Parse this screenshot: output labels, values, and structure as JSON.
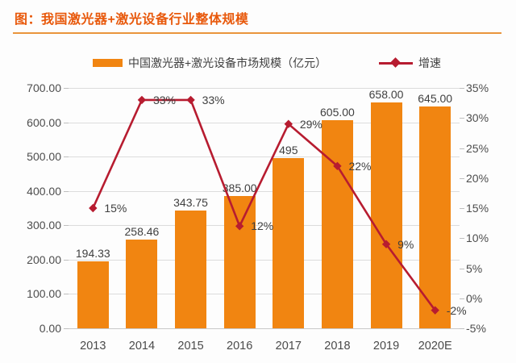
{
  "header": {
    "title": "图：我国激光器+激光设备行业整体规模"
  },
  "legend": {
    "items": [
      {
        "label": "中国激光器+激光设备市场规模（亿元）",
        "type": "bar"
      },
      {
        "label": "增速",
        "type": "line"
      }
    ]
  },
  "colors": {
    "title": "#E8590C",
    "underline": "#E9953C",
    "bar": "#F18511",
    "line": "#B71C30",
    "grid": "#DCDCDC",
    "axis_text": "#4D4D4D",
    "label_text": "#3F3F3F"
  },
  "chart_data": {
    "type": "bar+line combo",
    "title": "图：我国激光器+激光设备行业整体规模",
    "categories": [
      "2013",
      "2014",
      "2015",
      "2016",
      "2017",
      "2018",
      "2019",
      "2020E"
    ],
    "series": [
      {
        "name": "中国激光器+激光设备市场规模（亿元）",
        "type": "bar",
        "axis": "left",
        "values": [
          194.33,
          258.46,
          343.75,
          385.0,
          495,
          605.0,
          658.0,
          645.0
        ],
        "labels": [
          "194.33",
          "258.46",
          "343.75",
          "385.00",
          "495",
          "605.00",
          "658.00",
          "645.00"
        ]
      },
      {
        "name": "增速",
        "type": "line",
        "axis": "right",
        "values": [
          15,
          33,
          33,
          12,
          29,
          22,
          9,
          -2
        ],
        "labels": [
          "15%",
          "33%",
          "33%",
          "12%",
          "29%",
          "22%",
          "9%",
          "-2%"
        ]
      }
    ],
    "left_axis": {
      "min": 0,
      "max": 700,
      "step": 100,
      "tick_labels": [
        "700.00",
        "600.00",
        "500.00",
        "400.00",
        "300.00",
        "200.00",
        "100.00",
        "0.00"
      ]
    },
    "right_axis": {
      "min": -5,
      "max": 35,
      "step": 5,
      "tick_labels": [
        "35%",
        "30%",
        "25%",
        "20%",
        "15%",
        "10%",
        "5%",
        "0%",
        "-5%"
      ]
    },
    "grid": true,
    "legend_position": "top"
  }
}
